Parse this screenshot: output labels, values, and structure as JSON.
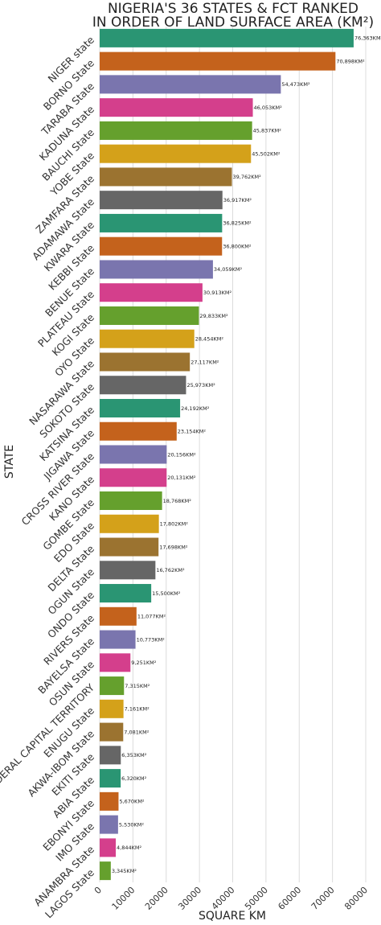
{
  "chart_data": {
    "type": "bar",
    "orientation": "horizontal",
    "title": "NIGERIA'S 36 STATES & FCT RANKED\nIN ORDER OF LAND SURFACE AREA (KM²)",
    "xlabel": "SQUARE KM",
    "ylabel": "STATE",
    "xlim": [
      0,
      80000
    ],
    "xticks": [
      0,
      10000,
      20000,
      30000,
      40000,
      50000,
      60000,
      70000,
      80000
    ],
    "grid": true,
    "categories": [
      "NIGER state",
      "BORNO State",
      "TARABA State",
      "KADUNA State",
      "BAUCHI State",
      "YOBE State",
      "ZAMFARA State",
      "ADAMAWA State",
      "KWARA State",
      "KEBBI State",
      "BENUE State",
      "PLATEAU State",
      "KOGI State",
      "OYO State",
      "NASARAWA State",
      "SOKOTO State",
      "KATSINA State",
      "JIGAWA State",
      "CROSS RIVER State",
      "KANO State",
      "GOMBE State",
      "EDO State",
      "DELTA State",
      "OGUN State",
      "ONDO State",
      "RIVERS State",
      "BAYELSA State",
      "OSUN State",
      "FEDERAL CAPITAL TERRITORY",
      "ENUGU State",
      "AKWA-IBOM State",
      "EKITI State",
      "ABIA State",
      "EBONYI State",
      "IMO State",
      "ANAMBRA State",
      "LAGOS State"
    ],
    "values": [
      76363,
      70898,
      54473,
      46053,
      45837,
      45502,
      39762,
      36917,
      36825,
      36800,
      34059,
      30913,
      29833,
      28454,
      27117,
      25973,
      24192,
      23154,
      20156,
      20131,
      18768,
      17802,
      17698,
      16762,
      15500,
      11077,
      10773,
      9251,
      7315,
      7161,
      7081,
      6353,
      6320,
      5670,
      5530,
      4844,
      3345
    ],
    "value_labels": [
      "76,363KM²",
      "70,898KM²",
      "54,473KM²",
      "46,053KM²",
      "45,837KM²",
      "45,502KM²",
      "39,762KM²",
      "36,917KM²",
      "36,825KM²",
      "36,800KM²",
      "34,059KM²",
      "30,913KM²",
      "29,833KM²",
      "28,454KM²",
      "27,117KM²",
      "25,973KM²",
      "24,192KM²",
      "23,154KM²",
      "20,156KM²",
      "20,131KM²",
      "18,768KM²",
      "17,802KM²",
      "17,698KM²",
      "16,762KM²",
      "15,500KM²",
      "11,077KM²",
      "10,773KM²",
      "9,251KM²",
      "7,315KM²",
      "7,161KM²",
      "7,081KM²",
      "6,353KM²",
      "6,320KM²",
      "5,670KM²",
      "5,530KM²",
      "4,844KM²",
      "3,345KM²"
    ],
    "palette": [
      "#2a9573",
      "#c4621c",
      "#7a75ae",
      "#d43f8c",
      "#65a02d",
      "#d4a11a",
      "#9b7330",
      "#666666"
    ]
  }
}
